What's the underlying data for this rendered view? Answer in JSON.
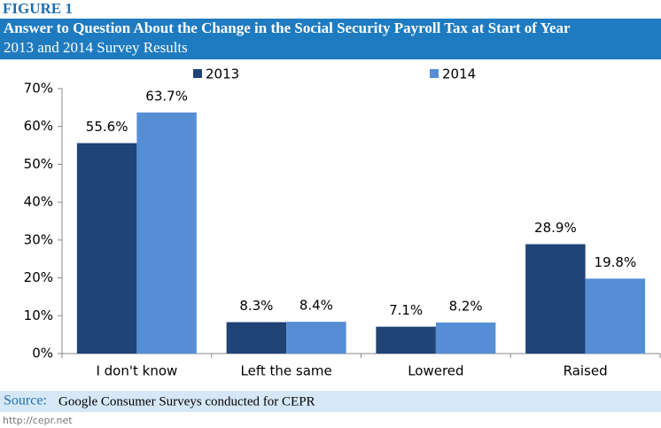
{
  "figure_label": "FIGURE 1",
  "chart_data": {
    "type": "bar",
    "title": "Answer to Question About the Change in the Social Security Payroll Tax at Start of Year",
    "subtitle": "2013 and 2014 Survey Results",
    "categories": [
      "I don't know",
      "Left the same",
      "Lowered",
      "Raised"
    ],
    "series": [
      {
        "name": "2013",
        "color": "#1f4475",
        "values": [
          55.6,
          8.3,
          7.1,
          28.9
        ],
        "value_labels": [
          "55.6%",
          "8.3%",
          "7.1%",
          "28.9%"
        ]
      },
      {
        "name": "2014",
        "color": "#558ed5",
        "values": [
          63.7,
          8.4,
          8.2,
          19.8
        ],
        "value_labels": [
          "63.7%",
          "8.4%",
          "8.2%",
          "19.8%"
        ]
      }
    ],
    "ylim": [
      0,
      70
    ],
    "yticks": [
      {
        "value": 0,
        "label": "0%"
      },
      {
        "value": 10,
        "label": "10%"
      },
      {
        "value": 20,
        "label": "20%"
      },
      {
        "value": 30,
        "label": "30%"
      },
      {
        "value": 40,
        "label": "40%"
      },
      {
        "value": 50,
        "label": "50%"
      },
      {
        "value": 60,
        "label": "60%"
      },
      {
        "value": 70,
        "label": "70%"
      }
    ],
    "grid": false,
    "legend": "top"
  },
  "source_label": "Source:",
  "source": "Google Consumer Surveys conducted for CEPR",
  "footer": "http://cepr.net"
}
